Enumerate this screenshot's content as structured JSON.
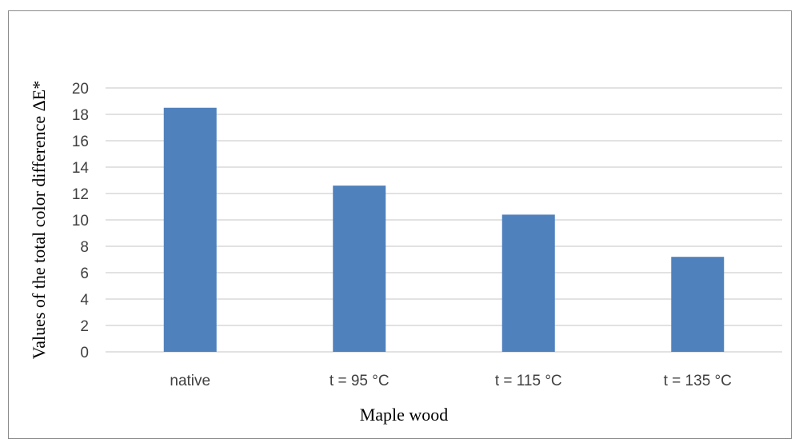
{
  "chart_data": {
    "type": "bar",
    "title": "",
    "xlabel": "Maple wood",
    "ylabel": "Values of the total color difference ΔE*",
    "categories": [
      "native",
      "t = 95 °C",
      "t = 115 °C",
      "t = 135 °C"
    ],
    "values": [
      18.5,
      12.6,
      10.4,
      7.2
    ],
    "ylim": [
      0,
      20
    ],
    "yticks": [
      "0",
      "2",
      "4",
      "6",
      "8",
      "10",
      "12",
      "14",
      "16",
      "18",
      "20"
    ],
    "grid": true,
    "legend": "none",
    "bar_color": "#4f81bd",
    "grid_color": "#d9d9d9"
  }
}
